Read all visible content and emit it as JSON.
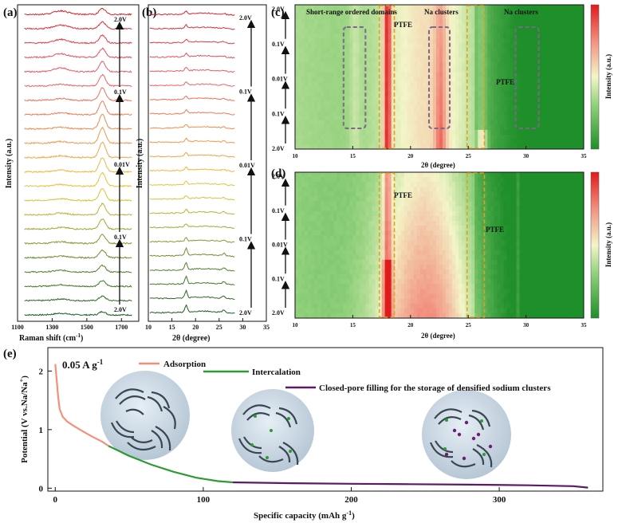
{
  "chart_data": [
    {
      "panel": "(a)",
      "type": "line",
      "title": "",
      "xlabel": "Raman shift (cm⁻¹)",
      "xlabel_parts": [
        "Raman shift (cm",
        "-1",
        ")"
      ],
      "ylabel": "Intensity (a.u.)",
      "xlim": [
        1100,
        1800
      ],
      "xticks": [
        1100,
        1300,
        1500,
        1700
      ],
      "xtick_labels": [
        "1100",
        "1300",
        "1500",
        "1700"
      ],
      "peaks": [
        1350,
        1590
      ],
      "n_spectra": 22,
      "colors_bottom_to_top": [
        "#1a5e1f",
        "#2b6a22",
        "#3d7a26",
        "#557f2b",
        "#6e8e2e",
        "#889a31",
        "#a4a833",
        "#bdb235",
        "#d8c23a",
        "#e8c23c",
        "#f0b63f",
        "#f2a544",
        "#f39849",
        "#f38a4d",
        "#f37b52",
        "#f26e58",
        "#f06262",
        "#ee5866",
        "#ec4b5b",
        "#e93b45",
        "#e62e35",
        "#e21f25"
      ],
      "voltage_labels_bottom_to_top": [
        "2.0V",
        "0.1V",
        "0.01V",
        "0.1V",
        "2.0V"
      ]
    },
    {
      "panel": "(b)",
      "type": "line",
      "xlabel": "2θ (degree)",
      "ylabel": "Intensity (a.u.)",
      "xlim": [
        10,
        35
      ],
      "xticks": [
        10,
        15,
        20,
        25,
        30,
        35
      ],
      "xtick_labels": [
        "10",
        "15",
        "20",
        "25",
        "30",
        "35"
      ],
      "peaks": [
        18.0,
        22.0,
        26.0
      ],
      "n_patterns": 22,
      "voltage_labels_bottom_to_top": [
        "2.0V",
        "0.1V",
        "0.01V",
        "0.1V",
        "2.0V"
      ]
    },
    {
      "panel": "(c)",
      "type": "heatmap",
      "xlabel": "2θ (degree)",
      "ylabel": "",
      "xlim": [
        10,
        35
      ],
      "xticks": [
        10,
        15,
        20,
        25,
        30,
        35
      ],
      "xtick_labels": [
        "10",
        "15",
        "20",
        "25",
        "30",
        "35"
      ],
      "y_voltage_labels": [
        "2.0V",
        "0.1V",
        "0.01V",
        "0.1V",
        "2.0V"
      ],
      "colorbar_label": "Intensity (a.u.)",
      "annotations": [
        "Short-range ordered domains",
        "PTFE",
        "Na clusters",
        "PTFE",
        "Na clusters"
      ],
      "grey_boxes_2theta": [
        [
          14.2,
          16.1
        ],
        [
          21.6,
          23.4
        ],
        [
          29.1,
          31.1
        ]
      ],
      "ptfe_boxes_2theta": [
        [
          17.3,
          18.6
        ],
        [
          24.9,
          26.4
        ]
      ]
    },
    {
      "panel": "(d)",
      "type": "heatmap",
      "xlabel": "2θ (degree)",
      "xlim": [
        10,
        35
      ],
      "xticks": [
        10,
        15,
        20,
        25,
        30,
        35
      ],
      "xtick_labels": [
        "10",
        "15",
        "20",
        "25",
        "30",
        "35"
      ],
      "y_voltage_labels": [
        "2.0V",
        "0.1V",
        "0.01V",
        "0.1V",
        "2.0V"
      ],
      "colorbar_label": "Intensity (a.u.)",
      "annotations": [
        "PTFE",
        "PTFE"
      ],
      "ptfe_boxes_2theta": [
        [
          17.3,
          18.6
        ],
        [
          24.9,
          26.4
        ]
      ]
    },
    {
      "panel": "(e)",
      "type": "line",
      "xlabel": "Specific capacity (mAh g⁻¹)",
      "xlabel_parts": [
        "Specific capacity (mAh g",
        "-1",
        ")"
      ],
      "ylabel": "Potential (V vs.Na/Na⁺)",
      "ylabel_parts": [
        "Potential (V vs.Na/Na",
        "+",
        ")"
      ],
      "xlim": [
        -5,
        370
      ],
      "ylim": [
        -0.05,
        2.4
      ],
      "xticks": [
        0,
        100,
        200,
        300
      ],
      "xtick_labels": [
        "0",
        "100",
        "200",
        "300"
      ],
      "yticks": [
        0,
        1,
        2
      ],
      "ytick_labels": [
        "0",
        "1",
        "2"
      ],
      "current_density": "0.05 A g",
      "current_density_exp": "-1",
      "series": [
        {
          "name": "Adsorption",
          "color": "#f4907a",
          "x": [
            0,
            1,
            2,
            3,
            5,
            8,
            12,
            18,
            25,
            32,
            36
          ],
          "y": [
            2.12,
            1.85,
            1.55,
            1.35,
            1.22,
            1.14,
            1.07,
            0.98,
            0.88,
            0.79,
            0.72
          ]
        },
        {
          "name": "Intercalation",
          "color": "#2e9a33",
          "x": [
            36,
            50,
            65,
            80,
            95,
            110,
            120
          ],
          "y": [
            0.72,
            0.55,
            0.4,
            0.28,
            0.18,
            0.12,
            0.1
          ]
        },
        {
          "name": "Closed-pore filling for the storage of densified sodium clusters",
          "color": "#5c1a66",
          "x": [
            120,
            160,
            200,
            240,
            280,
            320,
            350,
            360
          ],
          "y": [
            0.1,
            0.085,
            0.075,
            0.068,
            0.06,
            0.05,
            0.035,
            0.01
          ]
        }
      ]
    }
  ]
}
